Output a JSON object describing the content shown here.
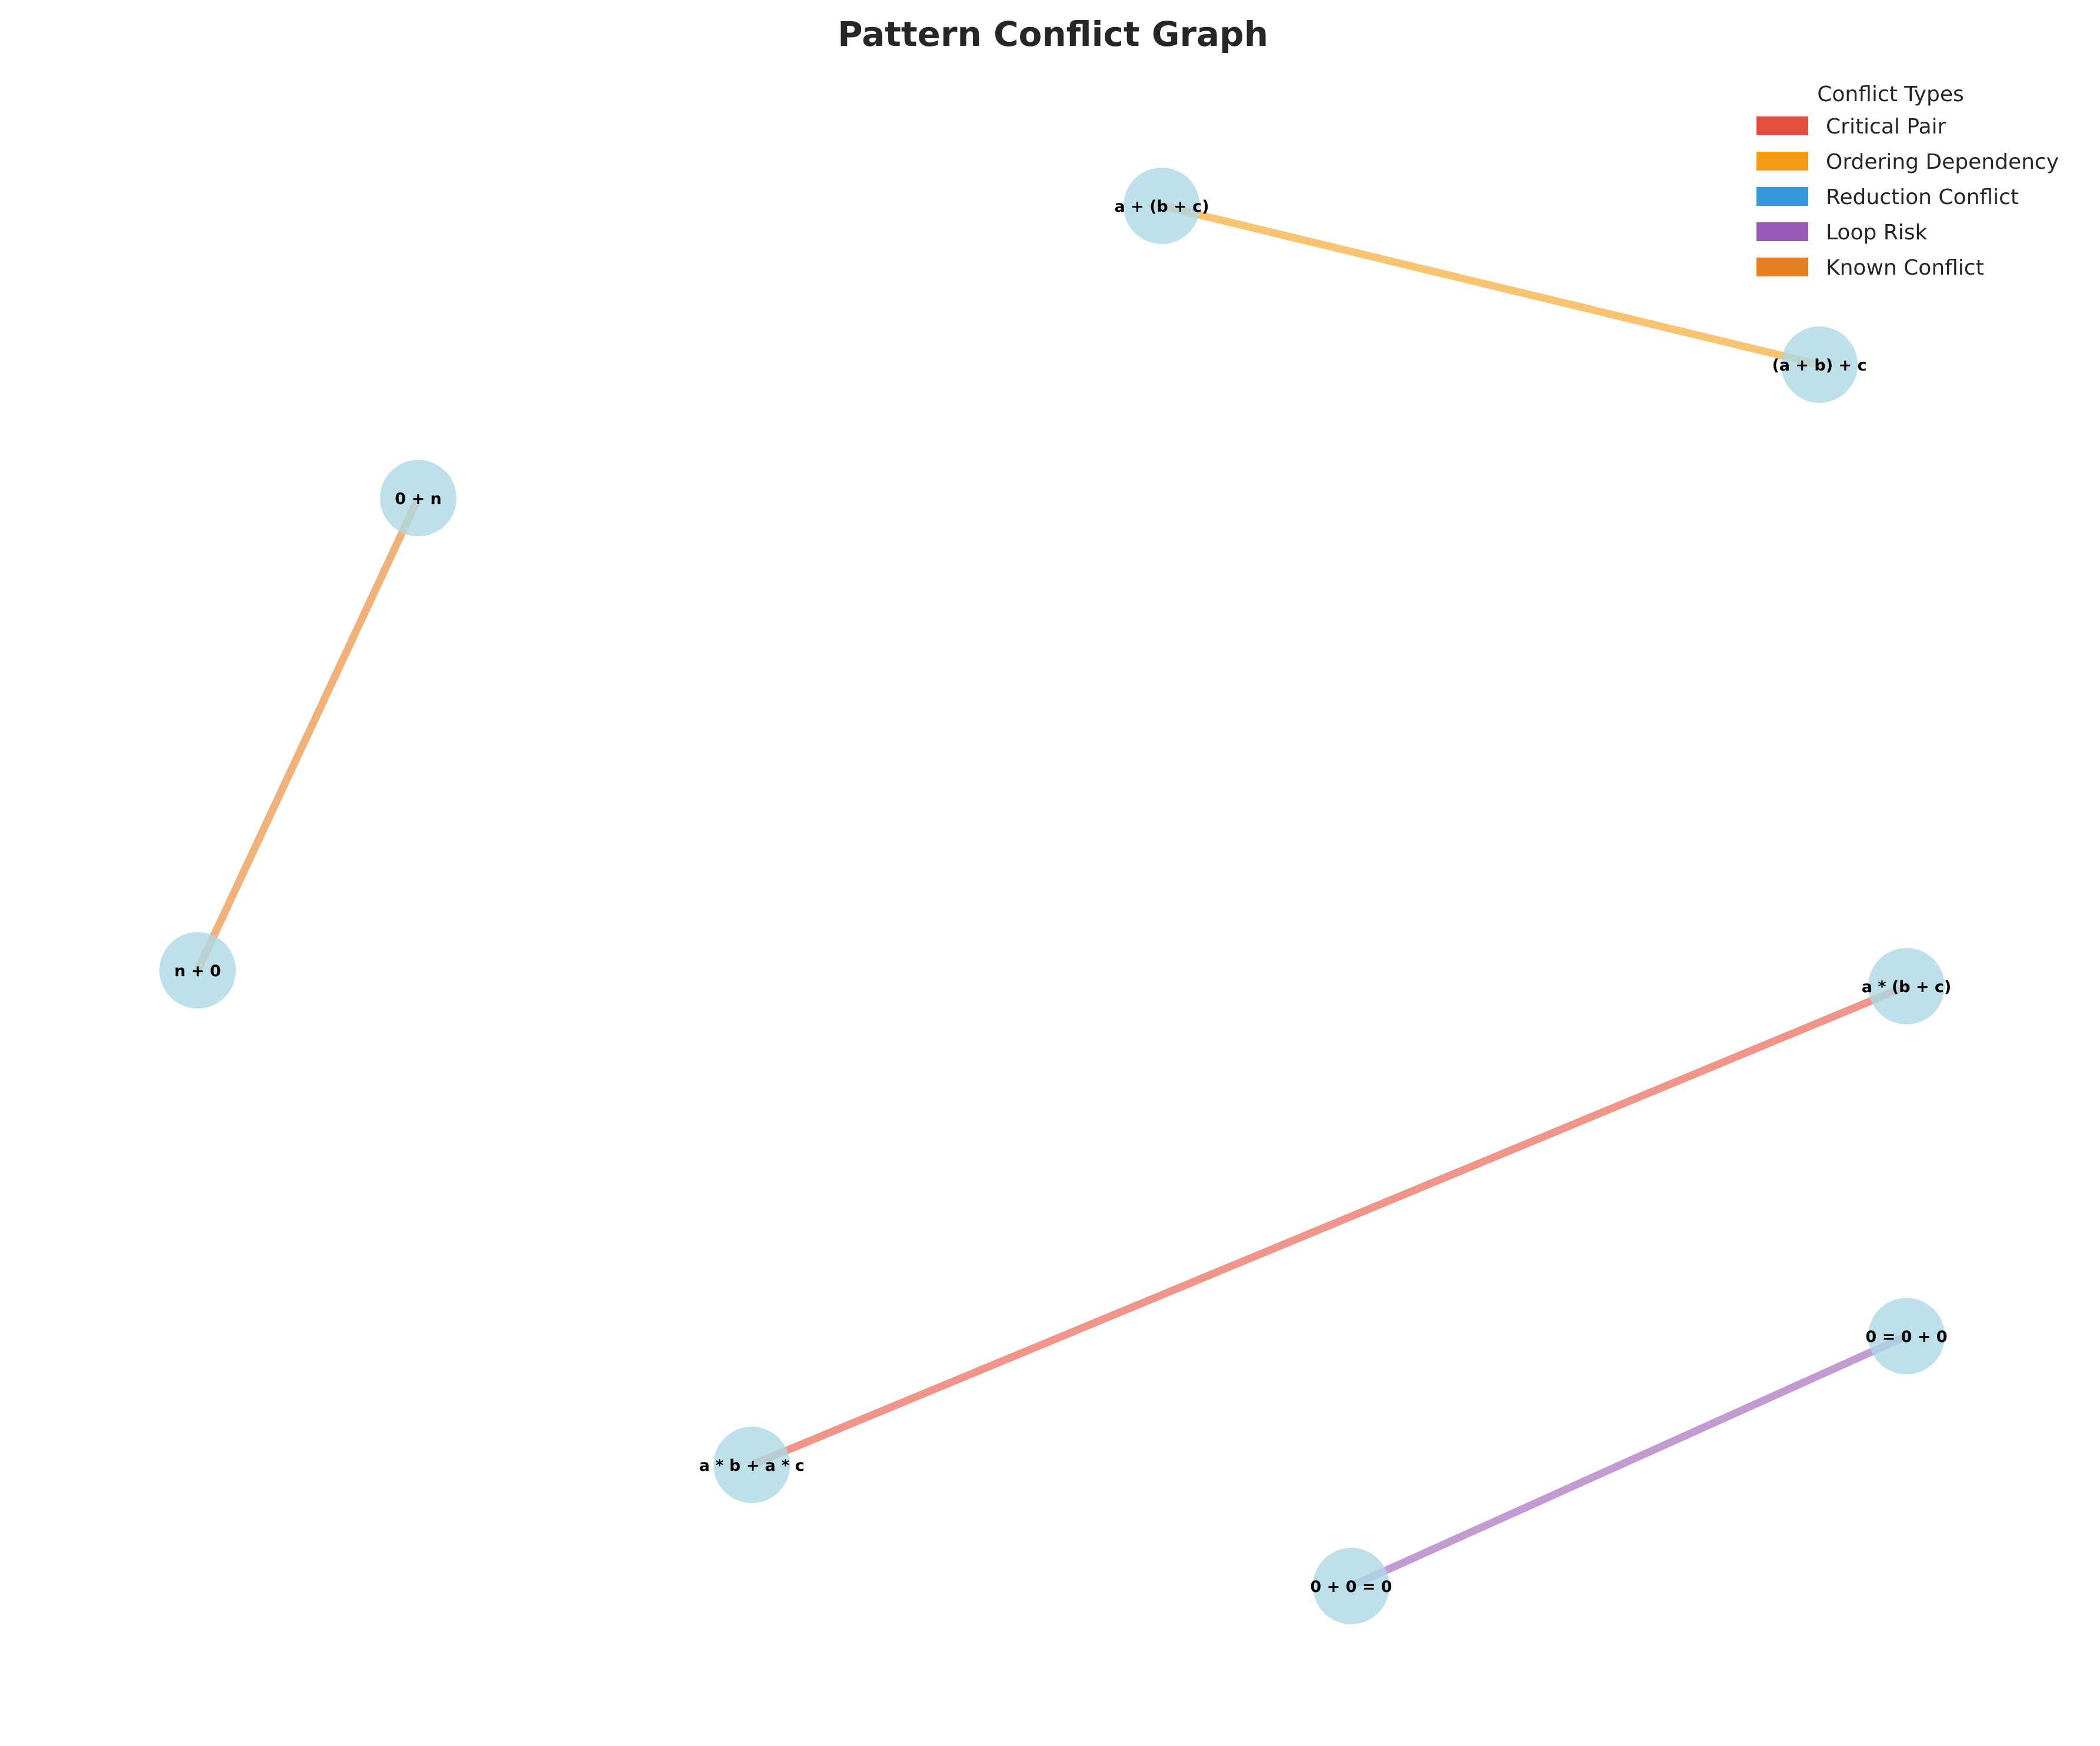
{
  "title": "Pattern Conflict Graph",
  "legend": {
    "title": "Conflict Types",
    "entries": [
      {
        "label": "Critical Pair",
        "color": "#e74c3c"
      },
      {
        "label": "Ordering Dependency",
        "color": "#f39c12"
      },
      {
        "label": "Reduction Conflict",
        "color": "#3498db"
      },
      {
        "label": "Loop Risk",
        "color": "#9b59b6"
      },
      {
        "label": "Known Conflict",
        "color": "#e67e22"
      }
    ]
  },
  "node_color": "#add8e6",
  "nodes": [
    {
      "id": "n1",
      "label": "a + (b + c)"
    },
    {
      "id": "n2",
      "label": "(a + b) + c"
    },
    {
      "id": "n3",
      "label": "0 + n"
    },
    {
      "id": "n4",
      "label": "n + 0"
    },
    {
      "id": "n5",
      "label": "a * (b + c)"
    },
    {
      "id": "n6",
      "label": "a * b + a * c"
    },
    {
      "id": "n7",
      "label": "0 = 0 + 0"
    },
    {
      "id": "n8",
      "label": "0 + 0 = 0"
    }
  ],
  "edges": [
    {
      "source": "n1",
      "target": "n2",
      "type": "Ordering Dependency"
    },
    {
      "source": "n3",
      "target": "n4",
      "type": "Known Conflict"
    },
    {
      "source": "n5",
      "target": "n6",
      "type": "Critical Pair"
    },
    {
      "source": "n7",
      "target": "n8",
      "type": "Loop Risk"
    }
  ]
}
